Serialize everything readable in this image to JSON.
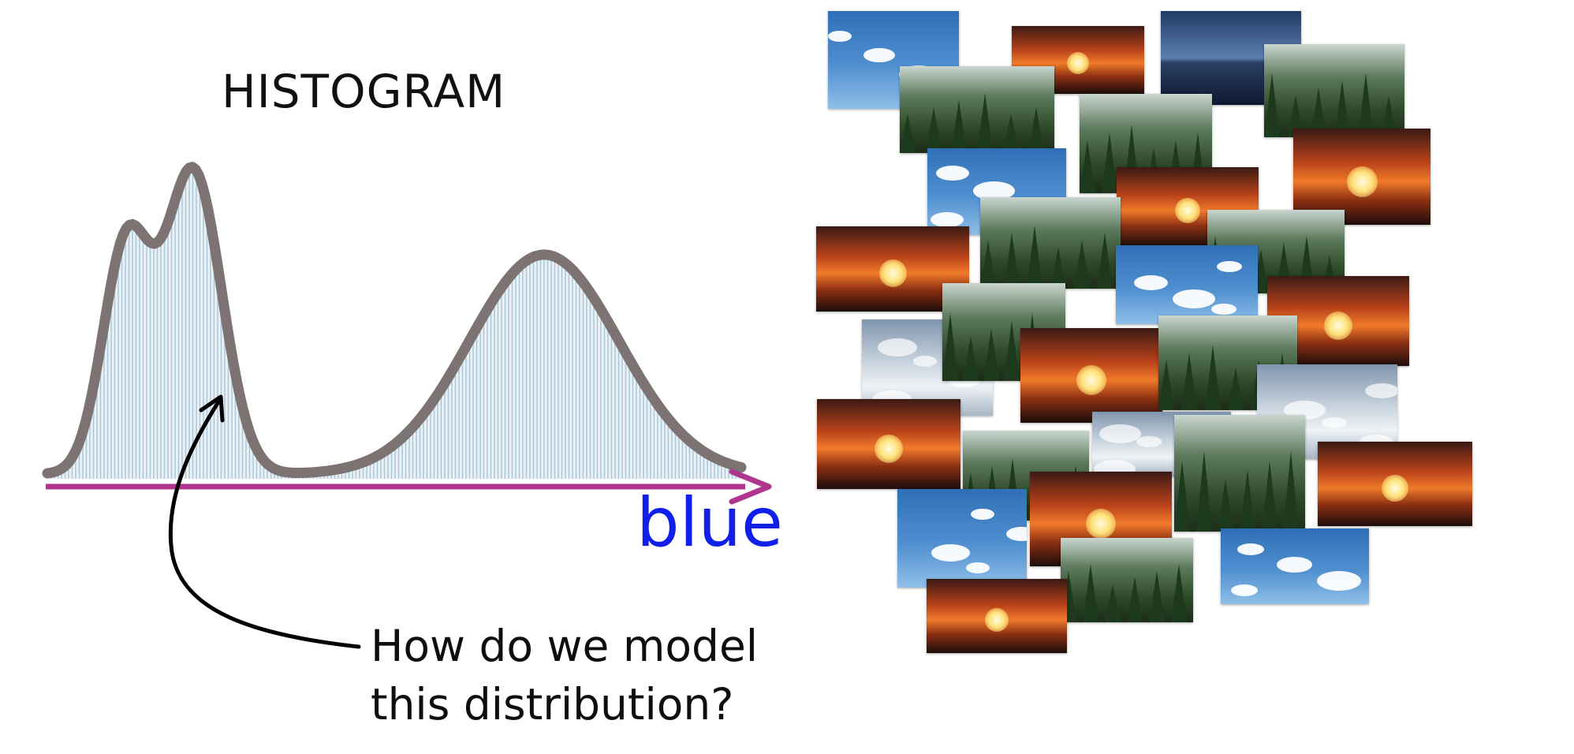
{
  "title": "HISTOGRAM",
  "axis_label": "blue",
  "question": {
    "line1": "How do we model",
    "line2": "this distribution?"
  },
  "colors": {
    "axis": "#b0358f",
    "curve": "#7d7373",
    "bars": "#a9c5d8",
    "bar_fill": "#e9f1f7",
    "axis_label": "#1020e8",
    "arrow": "#000000"
  },
  "collage": {
    "photos": [
      {
        "kind": "sky"
      },
      {
        "kind": "sunset"
      },
      {
        "kind": "lake"
      },
      {
        "kind": "forest"
      },
      {
        "kind": "forest"
      },
      {
        "kind": "forest"
      },
      {
        "kind": "sunset"
      },
      {
        "kind": "sky"
      },
      {
        "kind": "sunset"
      },
      {
        "kind": "forest"
      },
      {
        "kind": "sunset"
      },
      {
        "kind": "forest"
      },
      {
        "kind": "sky"
      },
      {
        "kind": "sunset"
      },
      {
        "kind": "clouds"
      },
      {
        "kind": "forest"
      },
      {
        "kind": "sunset"
      },
      {
        "kind": "forest"
      },
      {
        "kind": "sunset"
      },
      {
        "kind": "clouds"
      },
      {
        "kind": "clouds"
      },
      {
        "kind": "forest"
      },
      {
        "kind": "forest"
      },
      {
        "kind": "sunset"
      },
      {
        "kind": "sky"
      },
      {
        "kind": "sunset"
      },
      {
        "kind": "forest"
      },
      {
        "kind": "sky"
      },
      {
        "kind": "sunset"
      }
    ]
  }
}
